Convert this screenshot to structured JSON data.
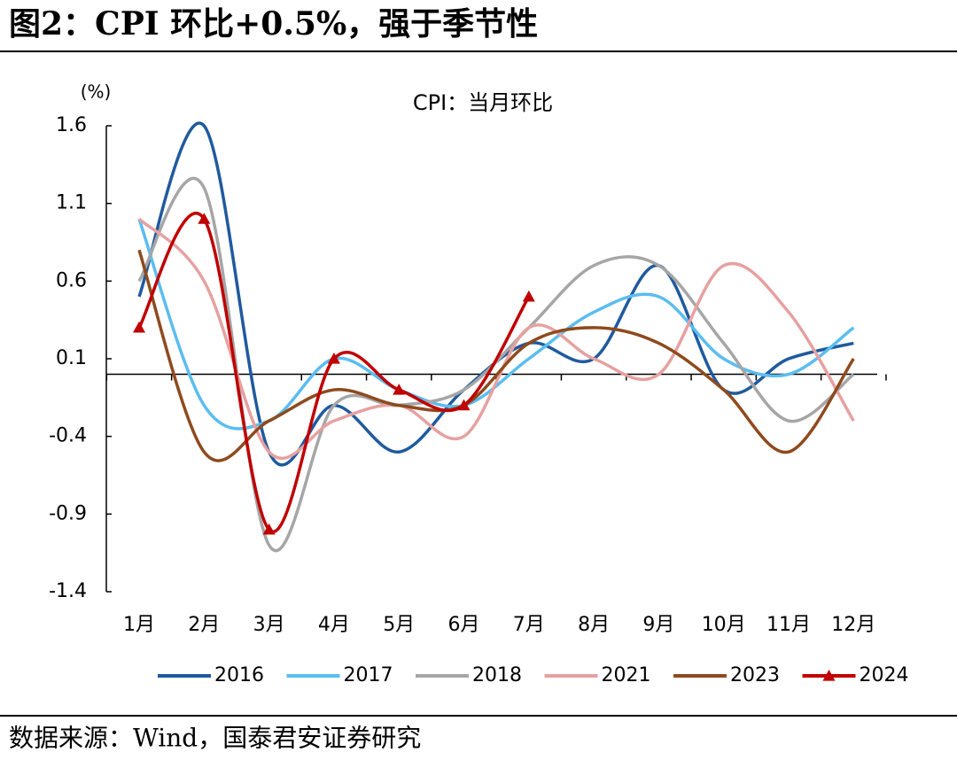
{
  "chart_data": {
    "type": "line",
    "title": "图2：CPI 环比+0.5%，强于季节性",
    "subtitle": "CPI：当月环比",
    "y_label": "(%)",
    "source": "数据来源：Wind，国泰君安证券研究",
    "categories": [
      "1月",
      "2月",
      "3月",
      "4月",
      "5月",
      "6月",
      "7月",
      "8月",
      "9月",
      "10月",
      "11月",
      "12月"
    ],
    "series": [
      {
        "name": "2016",
        "color": "#1f5a9e",
        "values": [
          0.5,
          1.6,
          -0.5,
          -0.2,
          -0.5,
          -0.1,
          0.2,
          0.1,
          0.7,
          -0.1,
          0.1,
          0.2
        ]
      },
      {
        "name": "2017",
        "color": "#5bbdf0",
        "values": [
          1.0,
          -0.2,
          -0.3,
          0.1,
          -0.1,
          -0.2,
          0.1,
          0.4,
          0.5,
          0.1,
          0.0,
          0.3
        ]
      },
      {
        "name": "2018",
        "color": "#a6a6a6",
        "values": [
          0.6,
          1.2,
          -1.1,
          -0.2,
          -0.2,
          -0.1,
          0.3,
          0.7,
          0.7,
          0.2,
          -0.3,
          0.0
        ]
      },
      {
        "name": "2021",
        "color": "#e6a1a1",
        "values": [
          1.0,
          0.6,
          -0.5,
          -0.3,
          -0.2,
          -0.4,
          0.3,
          0.1,
          0.0,
          0.7,
          0.4,
          -0.3
        ]
      },
      {
        "name": "2023",
        "color": "#8e4a1e",
        "values": [
          0.8,
          -0.5,
          -0.3,
          -0.1,
          -0.2,
          -0.2,
          0.2,
          0.3,
          0.2,
          -0.1,
          -0.5,
          0.1
        ]
      },
      {
        "name": "2024",
        "color": "#c00000",
        "marker": "triangle",
        "values": [
          0.3,
          1.0,
          -1.0,
          0.1,
          -0.1,
          -0.2,
          0.5,
          null,
          null,
          null,
          null,
          null
        ]
      }
    ],
    "ylim": [
      -1.4,
      1.6
    ],
    "yticks": [
      1.6,
      1.1,
      0.6,
      0.1,
      -0.4,
      -0.9,
      -1.4
    ]
  }
}
